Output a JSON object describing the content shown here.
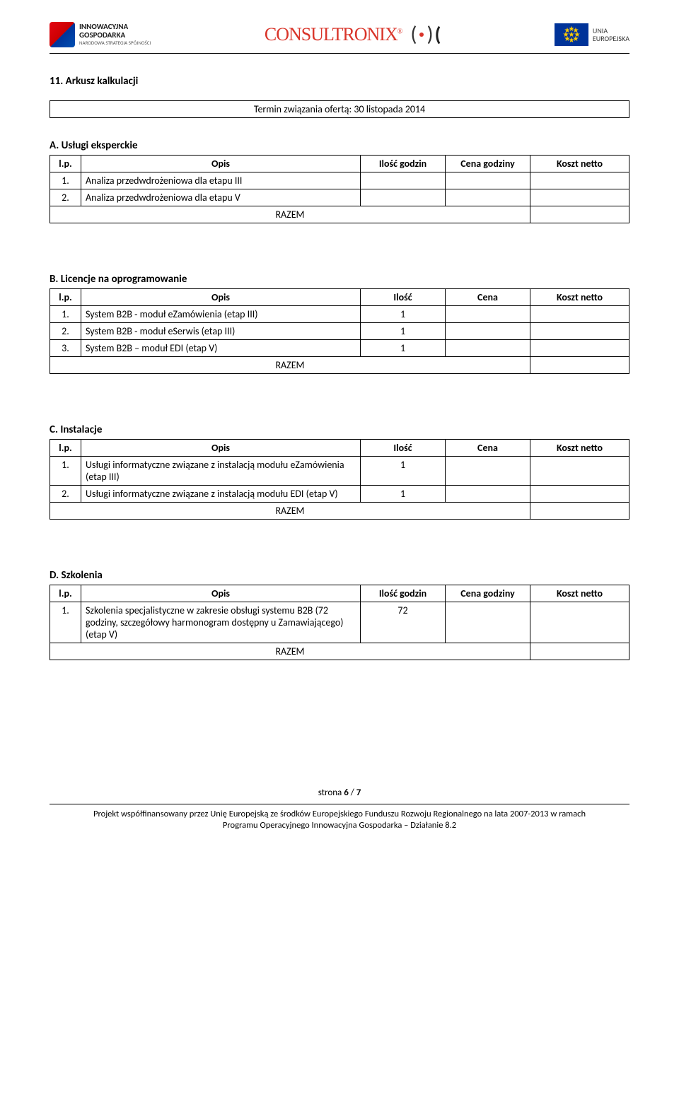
{
  "logos": {
    "ig_line1": "INNOWACYJNA",
    "ig_line2": "GOSPODARKA",
    "ig_sub": "NARODOWA STRATEGIA SPÓJNOŚCI",
    "consult": "CONSULTRONIX",
    "eu_line1": "UNIA",
    "eu_line2": "EUROPEJSKA"
  },
  "main_title": "11. Arkusz kalkulacji",
  "termin_box": "Termin związania ofertą: 30 listopada 2014",
  "sections": {
    "a": {
      "heading": "A. Usługi eksperckie",
      "headers": {
        "lp": "l.p.",
        "opis": "Opis",
        "ilosc": "Ilość godzin",
        "cena": "Cena godziny",
        "koszt": "Koszt netto"
      },
      "rows": [
        {
          "lp": "1.",
          "opis": "Analiza przedwdrożeniowa dla etapu III"
        },
        {
          "lp": "2.",
          "opis": "Analiza przedwdrożeniowa dla etapu V"
        }
      ],
      "razem": "RAZEM"
    },
    "b": {
      "heading": "B. Licencje na oprogramowanie",
      "headers": {
        "lp": "l.p.",
        "opis": "Opis",
        "ilosc": "Ilość",
        "cena": "Cena",
        "koszt": "Koszt netto"
      },
      "rows": [
        {
          "lp": "1.",
          "opis": "System B2B - moduł eZamówienia  (etap III)",
          "ilosc": "1"
        },
        {
          "lp": "2.",
          "opis": "System B2B - moduł eSerwis (etap III)",
          "ilosc": "1"
        },
        {
          "lp": "3.",
          "opis": "System B2B – moduł EDI (etap V)",
          "ilosc": "1"
        }
      ],
      "razem": "RAZEM"
    },
    "c": {
      "heading": "C. Instalacje",
      "headers": {
        "lp": "l.p.",
        "opis": "Opis",
        "ilosc": "Ilość",
        "cena": "Cena",
        "koszt": "Koszt netto"
      },
      "rows": [
        {
          "lp": "1.",
          "opis": "Usługi informatyczne związane z instalacją modułu eZamówienia (etap III)",
          "ilosc": "1"
        },
        {
          "lp": "2.",
          "opis": "Usługi informatyczne związane z instalacją modułu EDI (etap V)",
          "ilosc": "1"
        }
      ],
      "razem": "RAZEM"
    },
    "d": {
      "heading": "D. Szkolenia",
      "headers": {
        "lp": "l.p.",
        "opis": "Opis",
        "ilosc": "Ilość godzin",
        "cena": "Cena godziny",
        "koszt": "Koszt netto"
      },
      "rows": [
        {
          "lp": "1.",
          "opis": "Szkolenia specjalistyczne w zakresie obsługi systemu B2B (72 godziny, szczegółowy harmonogram dostępny u Zamawiającego) (etap V)",
          "ilosc": "72"
        }
      ],
      "razem": "RAZEM"
    }
  },
  "page_num": "strona 6 / 7",
  "footer_line1": "Projekt współfinansowany przez Unię Europejską ze środków Europejskiego Funduszu Rozwoju Regionalnego na lata 2007-2013 w ramach",
  "footer_line2": "Programu Operacyjnego Innowacyjna Gospodarka – Działanie 8.2"
}
